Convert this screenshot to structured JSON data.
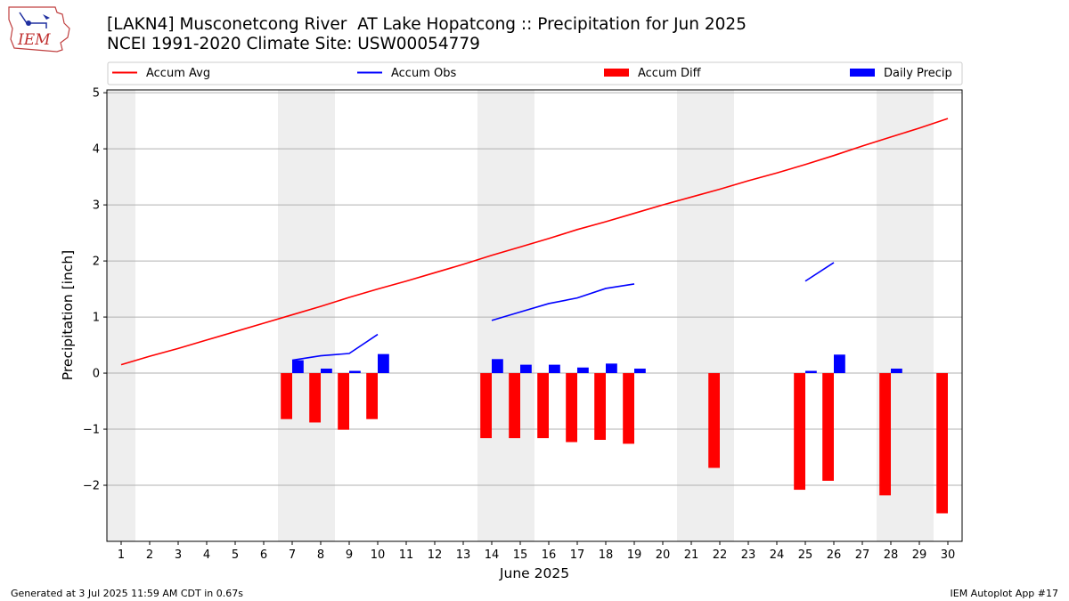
{
  "header": {
    "title_line1": "[LAKN4] Musconetcong River  AT Lake Hopatcong :: Precipitation for Jun 2025",
    "title_line2": "NCEI 1991-2020 Climate Site: USW00054779",
    "logo_text": "IEM"
  },
  "footer": {
    "left": "Generated at 3 Jul 2025 11:59 AM CDT in 0.67s",
    "right": "IEM Autoplot App #17"
  },
  "chart_data": {
    "type": "bar",
    "xlabel": "June 2025",
    "ylabel": "Precipitation [inch]",
    "xlim": [
      0.5,
      30.5
    ],
    "ylim": [
      -3.0,
      5.05
    ],
    "xticks": [
      1,
      2,
      3,
      4,
      5,
      6,
      7,
      8,
      9,
      10,
      11,
      12,
      13,
      14,
      15,
      16,
      17,
      18,
      19,
      20,
      21,
      22,
      23,
      24,
      25,
      26,
      27,
      28,
      29,
      30
    ],
    "yticks": [
      -2,
      -1,
      0,
      1,
      2,
      3,
      4,
      5
    ],
    "grid": "horizontal",
    "legend_position": "top",
    "weekend_shading": [
      [
        0.5,
        1.5
      ],
      [
        6.5,
        8.5
      ],
      [
        13.5,
        15.5
      ],
      [
        20.5,
        22.5
      ],
      [
        27.5,
        29.5
      ]
    ],
    "colors": {
      "accum_avg": "#ff0000",
      "accum_obs": "#0000ff",
      "accum_diff": "#ff0000",
      "daily_precip": "#0000ff",
      "shading": "#eeeeee",
      "grid": "#b0b0b0"
    },
    "legend": [
      "Accum Avg",
      "Accum Obs",
      "Accum Diff",
      "Daily Precip"
    ],
    "series": [
      {
        "name": "Accum Avg",
        "kind": "line",
        "x": [
          1,
          2,
          3,
          4,
          5,
          6,
          7,
          8,
          9,
          10,
          11,
          12,
          13,
          14,
          15,
          16,
          17,
          18,
          19,
          20,
          21,
          22,
          23,
          24,
          25,
          26,
          27,
          28,
          29,
          30
        ],
        "values": [
          0.15,
          0.3,
          0.44,
          0.59,
          0.74,
          0.89,
          1.04,
          1.19,
          1.35,
          1.5,
          1.64,
          1.79,
          1.94,
          2.1,
          2.25,
          2.4,
          2.56,
          2.7,
          2.85,
          3.0,
          3.14,
          3.28,
          3.43,
          3.57,
          3.72,
          3.88,
          4.05,
          4.21,
          4.37,
          4.54
        ]
      },
      {
        "name": "Accum Obs",
        "kind": "line",
        "segments": [
          {
            "x": [
              7,
              8,
              9,
              10
            ],
            "values": [
              0.23,
              0.31,
              0.35,
              0.69
            ]
          },
          {
            "x": [
              14,
              15,
              16,
              17,
              18,
              19
            ],
            "values": [
              0.94,
              1.09,
              1.24,
              1.34,
              1.51,
              1.59
            ]
          },
          {
            "x": [
              25,
              26
            ],
            "values": [
              1.64,
              1.97
            ]
          }
        ]
      },
      {
        "name": "Accum Diff",
        "kind": "bar",
        "x": [
          7,
          8,
          9,
          10,
          14,
          15,
          16,
          17,
          18,
          19,
          22,
          25,
          26,
          28,
          30
        ],
        "values": [
          -0.82,
          -0.88,
          -1.01,
          -0.82,
          -1.16,
          -1.16,
          -1.16,
          -1.23,
          -1.19,
          -1.26,
          -1.69,
          -2.08,
          -1.92,
          -2.18,
          -2.5
        ]
      },
      {
        "name": "Daily Precip",
        "kind": "bar",
        "x": [
          7,
          8,
          9,
          10,
          14,
          15,
          16,
          17,
          18,
          19,
          25,
          26,
          28
        ],
        "values": [
          0.23,
          0.08,
          0.04,
          0.34,
          0.25,
          0.15,
          0.15,
          0.1,
          0.17,
          0.08,
          0.04,
          0.33,
          0.08
        ]
      }
    ]
  }
}
